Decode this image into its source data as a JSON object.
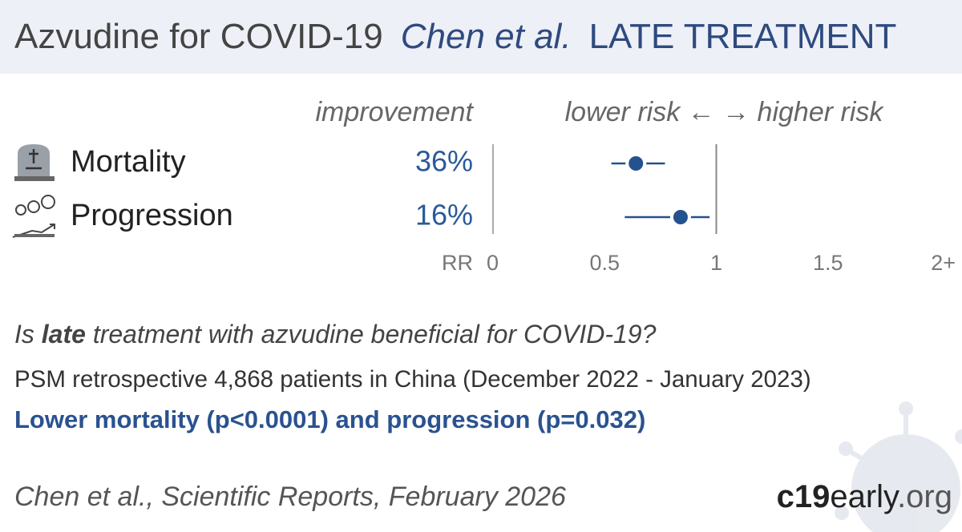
{
  "header": {
    "title": "Azvudine for COVID-19",
    "study": "Chen et al.",
    "stage": "LATE TREATMENT"
  },
  "chart_data": {
    "type": "forest",
    "improvement_header": "improvement",
    "direction_label": "lower risk ← → higher risk",
    "axis_label": "RR",
    "categories": [
      "Mortality",
      "Progression"
    ],
    "improvement": [
      36,
      16
    ],
    "value_labels": [
      "36%",
      "16%"
    ],
    "values": [
      0.64,
      0.84
    ],
    "ci_low": [
      0.53,
      0.59
    ],
    "ci_high": [
      0.77,
      0.97
    ],
    "color": "#23528f",
    "reference": 1,
    "xlim": [
      0,
      2
    ],
    "xticks": [
      0,
      0.5,
      1,
      1.5,
      {
        "value": 2,
        "label": "2+"
      }
    ]
  },
  "summary": {
    "question": [
      "Is ",
      "late",
      " treatment with azvudine beneficial for COVID-19?"
    ],
    "details": "PSM retrospective 4,868 patients in China (December 2022 - January 2023)",
    "conclusion": "Lower mortality (p<0.0001) and progression (p=0.032)",
    "citation": "Chen et al., Scientific Reports, February 2026",
    "brand": [
      "c19",
      "early",
      ".org"
    ]
  }
}
